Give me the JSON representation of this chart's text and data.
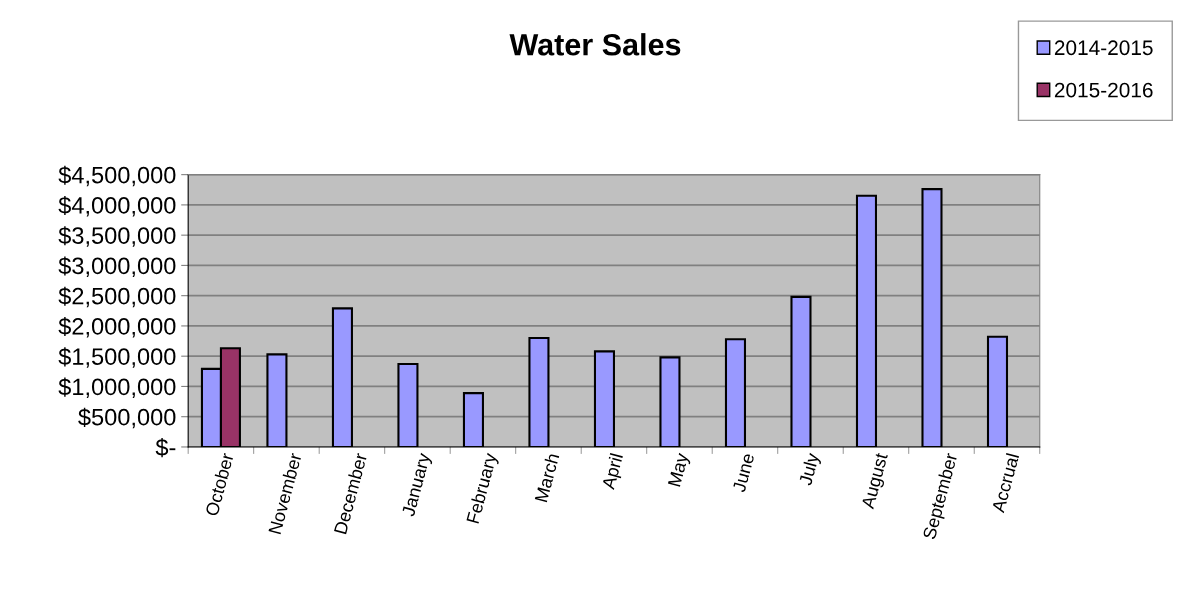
{
  "chart_data": {
    "type": "bar",
    "title": "Water Sales",
    "categories": [
      "October",
      "November",
      "December",
      "January",
      "February",
      "March",
      "April",
      "May",
      "June",
      "July",
      "August",
      "September",
      "Accrual"
    ],
    "series": [
      {
        "name": "2014-2015",
        "color": "#9999ff",
        "values": [
          1290000,
          1530000,
          2290000,
          1370000,
          890000,
          1800000,
          1580000,
          1480000,
          1780000,
          2480000,
          4150000,
          4260000,
          1820000
        ]
      },
      {
        "name": "2015-2016",
        "color": "#993366",
        "values": [
          1630000,
          null,
          null,
          null,
          null,
          null,
          null,
          null,
          null,
          null,
          null,
          null,
          null
        ]
      }
    ],
    "ylim": [
      0,
      4500000
    ],
    "yticks": [
      {
        "value": 0,
        "label": "$-"
      },
      {
        "value": 500000,
        "label": "$500,000"
      },
      {
        "value": 1000000,
        "label": "$1,000,000"
      },
      {
        "value": 1500000,
        "label": "$1,500,000"
      },
      {
        "value": 2000000,
        "label": "$2,000,000"
      },
      {
        "value": 2500000,
        "label": "$2,500,000"
      },
      {
        "value": 3000000,
        "label": "$3,000,000"
      },
      {
        "value": 3500000,
        "label": "$3,500,000"
      },
      {
        "value": 4000000,
        "label": "$4,000,000"
      },
      {
        "value": 4500000,
        "label": "$4,500,000"
      }
    ],
    "grid": "y",
    "legend": "top right"
  }
}
